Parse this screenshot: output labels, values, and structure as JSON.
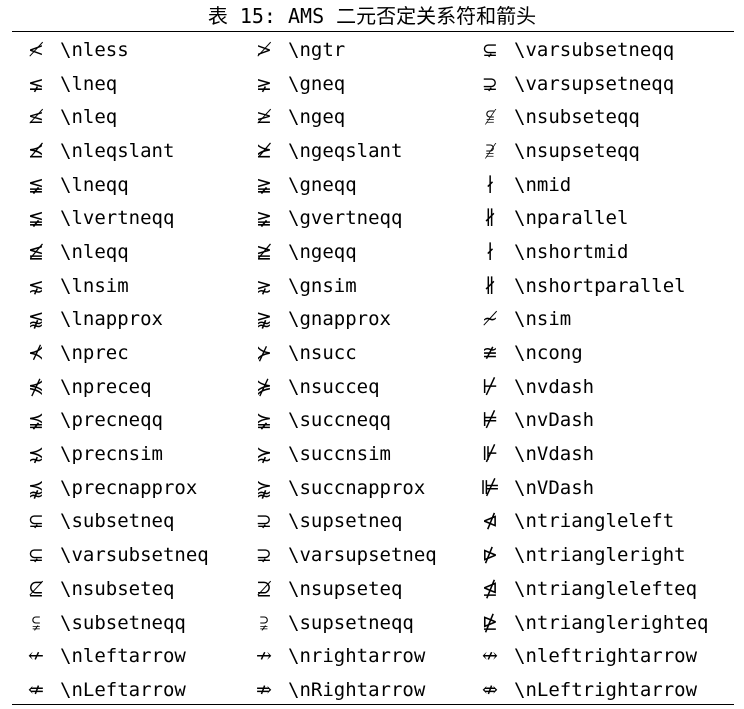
{
  "caption": "表 15: AMS 二元否定关系符和箭头",
  "rows": [
    [
      [
        "≮",
        "\\nless"
      ],
      [
        "≯",
        "\\ngtr"
      ],
      [
        "⊊",
        "\\varsubsetneqq"
      ]
    ],
    [
      [
        "⪇",
        "\\lneq"
      ],
      [
        "⪈",
        "\\gneq"
      ],
      [
        "⊋",
        "\\varsupsetneqq"
      ]
    ],
    [
      [
        "≰",
        "\\nleq"
      ],
      [
        "≱",
        "\\ngeq"
      ],
      [
        "⫅̸",
        "\\nsubseteqq"
      ]
    ],
    [
      [
        "⪯̸",
        "\\nleqslant"
      ],
      [
        "⪰̸",
        "\\ngeqslant"
      ],
      [
        "⫆̸",
        "\\nsupseteqq"
      ]
    ],
    [
      [
        "≨",
        "\\lneqq"
      ],
      [
        "≩",
        "\\gneqq"
      ],
      [
        "∤",
        "\\nmid"
      ]
    ],
    [
      [
        "≨︀",
        "\\lvertneqq"
      ],
      [
        "≩︀",
        "\\gvertneqq"
      ],
      [
        "∦",
        "\\nparallel"
      ]
    ],
    [
      [
        "≦̸",
        "\\nleqq"
      ],
      [
        "≧̸",
        "\\ngeqq"
      ],
      [
        "∤",
        "\\nshortmid"
      ]
    ],
    [
      [
        "⋦",
        "\\lnsim"
      ],
      [
        "⋧",
        "\\gnsim"
      ],
      [
        "∦",
        "\\nshortparallel"
      ]
    ],
    [
      [
        "⪉",
        "\\lnapprox"
      ],
      [
        "⪊",
        "\\gnapprox"
      ],
      [
        "≁",
        "\\nsim"
      ]
    ],
    [
      [
        "⊀",
        "\\nprec"
      ],
      [
        "⊁",
        "\\nsucc"
      ],
      [
        "≇",
        "\\ncong"
      ]
    ],
    [
      [
        "⋠",
        "\\npreceq"
      ],
      [
        "⋡",
        "\\nsucceq"
      ],
      [
        "⊬",
        "\\nvdash"
      ]
    ],
    [
      [
        "⪵",
        "\\precneqq"
      ],
      [
        "⪶",
        "\\succneqq"
      ],
      [
        "⊭",
        "\\nvDash"
      ]
    ],
    [
      [
        "⋨",
        "\\precnsim"
      ],
      [
        "⋩",
        "\\succnsim"
      ],
      [
        "⊮",
        "\\nVdash"
      ]
    ],
    [
      [
        "⪹",
        "\\precnapprox"
      ],
      [
        "⪺",
        "\\succnapprox"
      ],
      [
        "⊯",
        "\\nVDash"
      ]
    ],
    [
      [
        "⊊",
        "\\subsetneq"
      ],
      [
        "⊋",
        "\\supsetneq"
      ],
      [
        "⋪",
        "\\ntriangleleft"
      ]
    ],
    [
      [
        "⊊︀",
        "\\varsubsetneq"
      ],
      [
        "⊋︀",
        "\\varsupsetneq"
      ],
      [
        "⋫",
        "\\ntriangleright"
      ]
    ],
    [
      [
        "⊈",
        "\\nsubseteq"
      ],
      [
        "⊉",
        "\\nsupseteq"
      ],
      [
        "⋬",
        "\\ntrianglelefteq"
      ]
    ],
    [
      [
        "⫋",
        "\\subsetneqq"
      ],
      [
        "⫌",
        "\\supsetneqq"
      ],
      [
        "⋭",
        "\\ntrianglerighteq"
      ]
    ],
    [
      [
        "↚",
        "\\nleftarrow"
      ],
      [
        "↛",
        "\\nrightarrow"
      ],
      [
        "↮",
        "\\nleftrightarrow"
      ]
    ],
    [
      [
        "⇍",
        "\\nLeftarrow"
      ],
      [
        "⇏",
        "\\nRightarrow"
      ],
      [
        "⇎",
        "\\nLeftrightarrow"
      ]
    ]
  ]
}
